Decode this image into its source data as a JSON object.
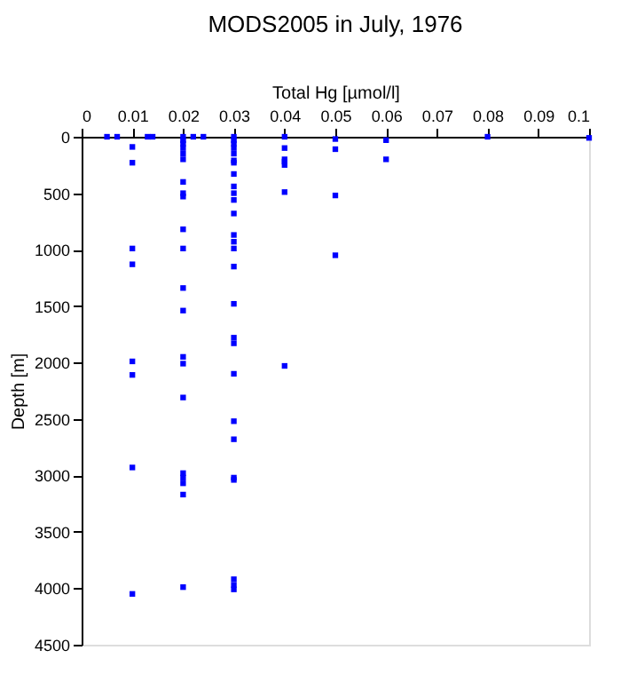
{
  "chart_data": {
    "type": "scatter",
    "title": "MODS2005 in July, 1976",
    "xlabel": "Total Hg [µmol/l]",
    "ylabel": "Depth [m]",
    "series": [
      {
        "color": "#0000ff",
        "x": [
          0.005,
          0.007,
          0.013,
          0.014,
          0.02,
          0.022,
          0.024,
          0.03,
          0.04,
          0.05,
          0.06,
          0.08,
          0.1,
          0.01,
          0.01,
          0.01,
          0.01,
          0.01,
          0.01,
          0.01,
          0.01,
          0.02,
          0.02,
          0.02,
          0.02,
          0.02,
          0.02,
          0.02,
          0.02,
          0.02,
          0.02,
          0.02,
          0.02,
          0.02,
          0.02,
          0.02,
          0.02,
          0.02,
          0.02,
          0.02,
          0.02,
          0.03,
          0.03,
          0.03,
          0.03,
          0.03,
          0.03,
          0.03,
          0.03,
          0.03,
          0.03,
          0.03,
          0.03,
          0.03,
          0.03,
          0.03,
          0.03,
          0.03,
          0.03,
          0.03,
          0.03,
          0.03,
          0.03,
          0.03,
          0.03,
          0.03,
          0.03,
          0.04,
          0.04,
          0.04,
          0.04,
          0.04,
          0.04,
          0.05,
          0.05,
          0.05,
          0.06
        ],
        "values": [
          0,
          0,
          0,
          0,
          0,
          0,
          0,
          0,
          0,
          20,
          30,
          0,
          10,
          90,
          230,
          990,
          1130,
          1990,
          2110,
          2930,
          4050,
          30,
          60,
          100,
          150,
          200,
          400,
          500,
          530,
          820,
          990,
          1340,
          1540,
          1950,
          2010,
          2310,
          2980,
          3020,
          3070,
          3170,
          3990,
          30,
          60,
          100,
          150,
          210,
          230,
          330,
          440,
          500,
          560,
          680,
          870,
          930,
          990,
          1150,
          1480,
          1780,
          1830,
          2100,
          2520,
          2680,
          3020,
          3040,
          3920,
          3970,
          4010,
          100,
          200,
          220,
          250,
          490,
          2030,
          110,
          520,
          1050,
          200
        ]
      }
    ],
    "xlim": [
      0,
      0.1
    ],
    "xticks": [
      0,
      0.01,
      0.02,
      0.03,
      0.04,
      0.05,
      0.06,
      0.07,
      0.08,
      0.09,
      0.1
    ],
    "ylim": [
      4500,
      0
    ],
    "yticks": [
      0,
      500,
      1000,
      1500,
      2000,
      2500,
      3000,
      3500,
      4000,
      4500
    ],
    "marker": "square",
    "grid": false
  }
}
